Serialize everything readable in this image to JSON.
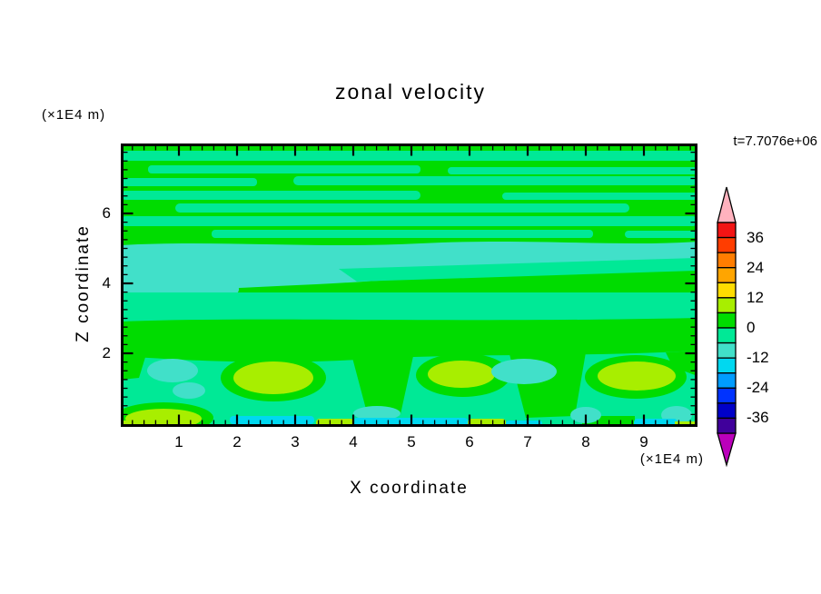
{
  "title": "zonal velocity",
  "time_annotation": "t=7.7076e+06",
  "x_axis": {
    "label": "X coordinate",
    "unit": "(×1E4 m)",
    "tick_labels": [
      "1",
      "2",
      "3",
      "4",
      "5",
      "6",
      "7",
      "8",
      "9"
    ],
    "range": [
      0,
      9.9
    ],
    "minor_tick_step": 0.2
  },
  "y_axis": {
    "label": "Z coordinate",
    "unit": "(×1E4 m)",
    "tick_labels": [
      "2",
      "4",
      "6"
    ],
    "range": [
      0,
      8.1
    ],
    "minor_tick_step": 0.25
  },
  "field_colors": {
    "green": "#00DC00",
    "spring": "#00E996",
    "turquoise": "#41E0C9",
    "cyan": "#00D8F0",
    "chartreuse": "#A8EE00"
  },
  "colorbar": {
    "tick_labels": [
      "36",
      "24",
      "12",
      "0",
      "-12",
      "-24",
      "-36"
    ],
    "over_color": "#FFB2BE",
    "under_color": "#BB00BB",
    "segments": [
      {
        "range": "36 to 42",
        "color": "#F21414"
      },
      {
        "range": "30 to 36",
        "color": "#FF3D00"
      },
      {
        "range": "24 to 30",
        "color": "#FF7D00"
      },
      {
        "range": "18 to 24",
        "color": "#FFA500"
      },
      {
        "range": "12 to 18",
        "color": "#FFDC00"
      },
      {
        "range": "6 to 12",
        "color": "#A8EE00"
      },
      {
        "range": "0 to 6",
        "color": "#00DC00"
      },
      {
        "range": "-6 to 0",
        "color": "#00E996"
      },
      {
        "range": "-12 to -6",
        "color": "#41E0C9"
      },
      {
        "range": "-18 to -12",
        "color": "#00D8F0"
      },
      {
        "range": "-24 to -18",
        "color": "#009CFF"
      },
      {
        "range": "-30 to -24",
        "color": "#0033FF"
      },
      {
        "range": "-36 to -30",
        "color": "#0000C8"
      },
      {
        "range": "-42 to -36",
        "color": "#40009B"
      }
    ]
  },
  "chart_data": {
    "type": "heatmap",
    "subtype": "filled-contour",
    "title": "zonal velocity",
    "xlabel": "X coordinate",
    "ylabel": "Z coordinate",
    "x_unit": "×1E4 m",
    "z_unit": "×1E4 m",
    "x_range": [
      0,
      9.9
    ],
    "z_range": [
      0,
      8.1
    ],
    "time_label": "t=7.7076e+06",
    "contour_interval": 6,
    "colorbar_levels": [
      42,
      36,
      30,
      24,
      18,
      12,
      6,
      0,
      -6,
      -12,
      -18,
      -24,
      -30,
      -36,
      -42
    ],
    "colorbar_labeled_ticks": [
      36,
      24,
      12,
      0,
      -12,
      -24,
      -36
    ],
    "field_structure": [
      {
        "z_band": [
          5.4,
          8.1
        ],
        "velocity_range": [
          -6,
          6
        ],
        "pattern": "interleaved elongated horizontal streaks of 0..6 (green) and -6..0 (spring green)"
      },
      {
        "z_band": [
          4.0,
          5.4
        ],
        "velocity_range": [
          -12,
          -6
        ],
        "pattern": "turquoise band with spring-green streaks inside"
      },
      {
        "z_band": [
          3.3,
          4.0
        ],
        "velocity_range": [
          -6,
          0
        ],
        "pattern": "spring-green band"
      },
      {
        "z_band": [
          1.9,
          3.3
        ],
        "velocity_range": [
          0,
          6
        ],
        "pattern": "solid green band, wavy lower edge with downward green tongues near x=3.2, 6.5, 9.5"
      },
      {
        "z_band": [
          0.2,
          1.9
        ],
        "velocity_range": [
          -12,
          12
        ],
        "pattern": "spring-green background; chartreuse maxima (6..12) near x=2.6, 5.9, 9.0 and x=0.9 bottom; turquoise minima (-12..-6) near x=1.0, 4.8, 8.2, 9.7"
      },
      {
        "z_band": [
          0.0,
          0.2
        ],
        "velocity_range": [
          -18,
          12
        ],
        "pattern": "thin bottom strip alternating cyan (-18..-12) and chartreuse (6..12) segments"
      }
    ]
  }
}
